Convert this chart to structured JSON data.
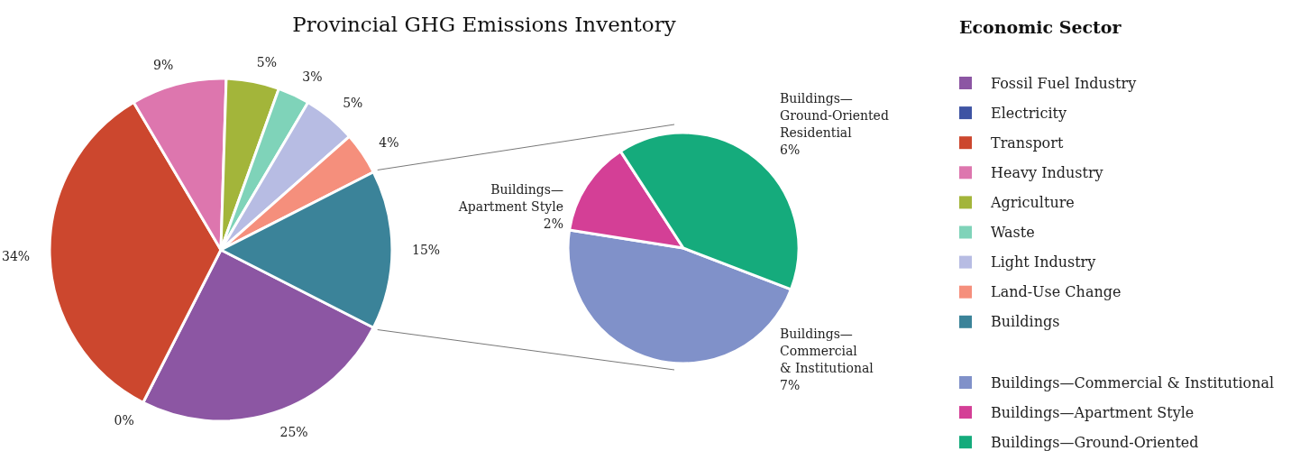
{
  "chart_data": [
    {
      "type": "pie",
      "title": "Provincial GHG Emissions Inventory",
      "legend_title": "Economic Sector",
      "legend": "right",
      "categories": [
        "Fossil Fuel Industry",
        "Electricity",
        "Transport",
        "Heavy Industry",
        "Agriculture",
        "Waste",
        "Light Industry",
        "Land-Use Change",
        "Buildings"
      ],
      "values": [
        25,
        0,
        34,
        9,
        5,
        3,
        5,
        4,
        15
      ],
      "colors": [
        "#8c56a3",
        "#3f54a3",
        "#cc472e",
        "#dd76ae",
        "#a3b53a",
        "#7fd3b9",
        "#b7bce3",
        "#f58f7c",
        "#3b8399"
      ],
      "value_labels": [
        "25%",
        "0%",
        "34%",
        "9%",
        "5%",
        "3%",
        "5%",
        "4%",
        "15%"
      ]
    },
    {
      "type": "pie",
      "legend": "right",
      "categories": [
        "Buildings—Commercial & Institutional",
        "Buildings—Apartment Style",
        "Buildings—Ground-Oriented"
      ],
      "values": [
        7,
        2,
        6
      ],
      "colors": [
        "#8091c9",
        "#d43f96",
        "#15ab7c"
      ],
      "value_labels": [
        "Buildings—\nCommercial\n& Institutional\n7%",
        "Buildings—\nApartment Style\n2%",
        "Buildings—\nGround-Oriented\nResidential\n6%"
      ]
    }
  ]
}
